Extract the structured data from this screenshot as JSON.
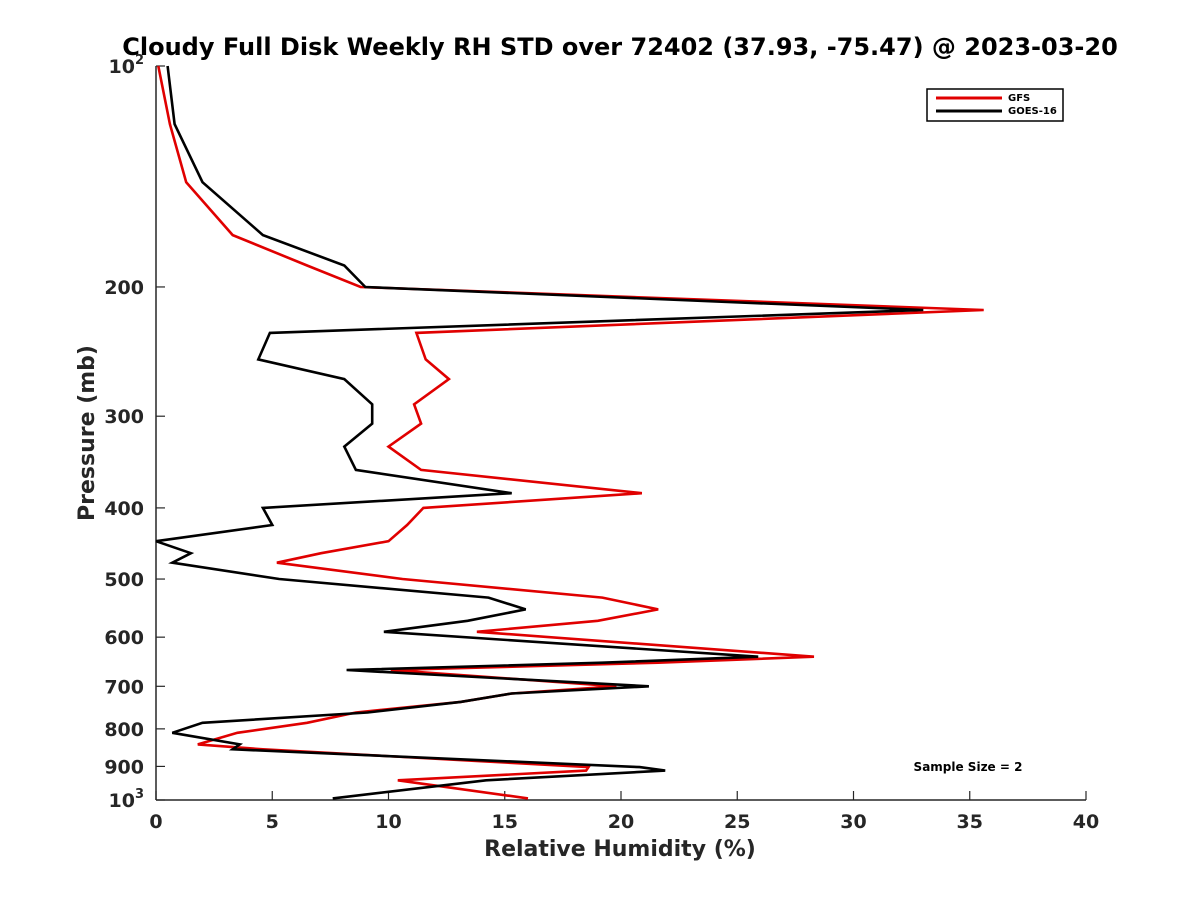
{
  "chart_data": {
    "type": "line",
    "title": "Cloudy Full Disk Weekly RH STD over 72402 (37.93, -75.47) @ 2023-03-20",
    "xlabel": "Relative Humidity (%)",
    "ylabel": "Pressure (mb)",
    "xlim": [
      0,
      40
    ],
    "ylim": [
      100,
      1000
    ],
    "y_scale": "log",
    "y_reversed": true,
    "grid": false,
    "legend_placement": "top-right",
    "x_ticks": [
      "0",
      "5",
      "10",
      "15",
      "20",
      "25",
      "30",
      "35",
      "40"
    ],
    "y_ticks": [
      {
        "base": "10",
        "exp": "2",
        "value": 100
      },
      {
        "label": "200",
        "value": 200
      },
      {
        "label": "300",
        "value": 300
      },
      {
        "label": "400",
        "value": 400
      },
      {
        "label": "500",
        "value": 500
      },
      {
        "label": "600",
        "value": 600
      },
      {
        "label": "700",
        "value": 700
      },
      {
        "label": "800",
        "value": 800
      },
      {
        "label": "900",
        "value": 900
      },
      {
        "base": "10",
        "exp": "3",
        "value": 1000
      }
    ],
    "annotation": "Sample Size = 2",
    "series": [
      {
        "name": "GFS",
        "color": "#e00000",
        "points": [
          [
            0.1,
            100
          ],
          [
            0.6,
            120
          ],
          [
            1.3,
            144
          ],
          [
            3.3,
            170
          ],
          [
            6.5,
            187
          ],
          [
            8.8,
            200
          ],
          [
            35.6,
            215
          ],
          [
            11.2,
            231
          ],
          [
            11.6,
            251
          ],
          [
            12.6,
            267
          ],
          [
            11.1,
            289
          ],
          [
            11.4,
            307
          ],
          [
            10.0,
            330
          ],
          [
            11.4,
            355
          ],
          [
            20.9,
            382
          ],
          [
            11.5,
            400
          ],
          [
            10.8,
            422
          ],
          [
            10.0,
            444
          ],
          [
            7.1,
            461
          ],
          [
            5.2,
            475
          ],
          [
            10.6,
            500
          ],
          [
            19.2,
            530
          ],
          [
            21.6,
            550
          ],
          [
            19.0,
            570
          ],
          [
            13.8,
            590
          ],
          [
            28.3,
            638
          ],
          [
            21.6,
            650
          ],
          [
            10.1,
            665
          ],
          [
            19.8,
            700
          ],
          [
            15.3,
            716
          ],
          [
            13.1,
            735
          ],
          [
            8.6,
            760
          ],
          [
            6.5,
            785
          ],
          [
            3.5,
            810
          ],
          [
            1.8,
            840
          ],
          [
            4.6,
            853
          ],
          [
            18.6,
            902
          ],
          [
            18.5,
            912
          ],
          [
            10.4,
            940
          ],
          [
            16.0,
            995
          ]
        ]
      },
      {
        "name": "GOES-16",
        "color": "#000000",
        "points": [
          [
            0.5,
            100
          ],
          [
            0.8,
            120
          ],
          [
            2.0,
            144
          ],
          [
            4.6,
            170
          ],
          [
            8.1,
            187
          ],
          [
            9.0,
            200
          ],
          [
            33.0,
            215
          ],
          [
            4.9,
            231
          ],
          [
            4.4,
            251
          ],
          [
            8.1,
            267
          ],
          [
            9.3,
            289
          ],
          [
            9.3,
            307
          ],
          [
            8.1,
            330
          ],
          [
            8.6,
            355
          ],
          [
            15.3,
            382
          ],
          [
            4.6,
            400
          ],
          [
            5.0,
            422
          ],
          [
            0.0,
            444
          ],
          [
            1.5,
            461
          ],
          [
            0.7,
            475
          ],
          [
            5.3,
            500
          ],
          [
            14.3,
            530
          ],
          [
            15.9,
            550
          ],
          [
            13.4,
            570
          ],
          [
            9.8,
            590
          ],
          [
            25.9,
            638
          ],
          [
            19.2,
            650
          ],
          [
            8.2,
            665
          ],
          [
            21.2,
            700
          ],
          [
            15.3,
            716
          ],
          [
            13.1,
            735
          ],
          [
            9.1,
            760
          ],
          [
            2.0,
            785
          ],
          [
            0.7,
            810
          ],
          [
            3.6,
            840
          ],
          [
            3.3,
            853
          ],
          [
            20.8,
            902
          ],
          [
            21.9,
            912
          ],
          [
            14.2,
            940
          ],
          [
            7.6,
            995
          ]
        ]
      }
    ]
  }
}
